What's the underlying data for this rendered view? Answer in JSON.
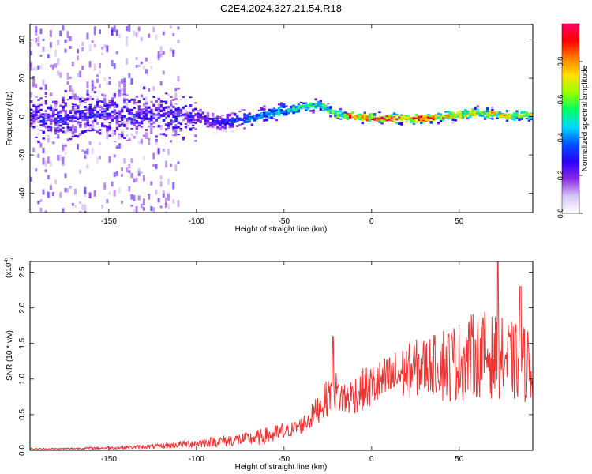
{
  "chart_data": [
    {
      "type": "heatmap",
      "title": "C2E4.2024.327.21.54.R18",
      "xlabel": "Height of straight line (km)",
      "ylabel": "Frequency (Hz)",
      "xlim": [
        -195,
        92
      ],
      "ylim": [
        -50,
        48
      ],
      "xticks": [
        -150,
        -100,
        -50,
        0,
        50
      ],
      "yticks": [
        -40,
        -20,
        0,
        20,
        40
      ],
      "colorbar": {
        "label": "Normalized spectral amplitude",
        "range": [
          0.0,
          1.0
        ],
        "ticks": [
          0.0,
          0.2,
          0.4,
          0.6,
          0.8
        ],
        "tick_labels": [
          "0.0",
          "0.2",
          "0.4",
          "0.6",
          "0.8"
        ],
        "colormap": [
          "#ffffff",
          "#d6c6f7",
          "#8a2be2",
          "#2b00ff",
          "#0050ff",
          "#00d8ff",
          "#00ff66",
          "#9aff00",
          "#ffe100",
          "#ff7f00",
          "#ff0000",
          "#ff0066"
        ]
      },
      "ridge": {
        "x": [
          -195,
          -180,
          -160,
          -140,
          -120,
          -100,
          -90,
          -80,
          -70,
          -60,
          -50,
          -40,
          -30,
          -25,
          -20,
          -10,
          0,
          10,
          20,
          30,
          40,
          50,
          60,
          70,
          80,
          92
        ],
        "freq": [
          0,
          -1,
          1,
          0,
          2,
          0,
          -3,
          -2,
          -1,
          1,
          3,
          5,
          6,
          3,
          1,
          0,
          -1,
          -1,
          -1,
          -1,
          0,
          1,
          2,
          1,
          0,
          1
        ]
      }
    },
    {
      "type": "line",
      "xlabel": "Height of straight line (km)",
      "ylabel": "SNR (10 * v/v)",
      "y_multiplier": "(x10",
      "y_multiplier_exp": "4",
      "xlim": [
        -195,
        92
      ],
      "ylim": [
        0,
        2.65
      ],
      "xticks": [
        -150,
        -100,
        -50,
        0,
        50
      ],
      "yticks": [
        0.0,
        0.5,
        1.0,
        1.5,
        2.0,
        2.5
      ],
      "ytick_labels": [
        "0.0",
        "0.5",
        "1.0",
        "1.5",
        "2.0",
        "2.5"
      ],
      "color": "#ee3333",
      "series": [
        {
          "x": [
            -195,
            -180,
            -160,
            -140,
            -120,
            -110,
            -100,
            -90,
            -80,
            -70,
            -60,
            -50,
            -45,
            -40,
            -35,
            -30,
            -25,
            -22,
            -20,
            -15,
            -10,
            -5,
            0,
            5,
            10,
            15,
            20,
            25,
            30,
            35,
            40,
            45,
            50,
            55,
            60,
            65,
            70,
            75,
            80,
            85,
            92
          ],
          "y": [
            0.02,
            0.02,
            0.03,
            0.04,
            0.06,
            0.08,
            0.1,
            0.12,
            0.14,
            0.16,
            0.2,
            0.25,
            0.3,
            0.35,
            0.45,
            0.6,
            0.75,
            0.95,
            0.8,
            0.72,
            0.78,
            0.85,
            0.9,
            0.95,
            1.0,
            1.05,
            1.1,
            1.15,
            1.18,
            1.2,
            1.22,
            1.22,
            1.25,
            1.3,
            1.35,
            1.35,
            1.3,
            1.28,
            1.25,
            1.22,
            1.2
          ]
        }
      ],
      "peaks": [
        {
          "x": -22,
          "y": 1.6
        },
        {
          "x": 72,
          "y": 2.65
        },
        {
          "x": 85,
          "y": 2.3
        }
      ]
    }
  ]
}
